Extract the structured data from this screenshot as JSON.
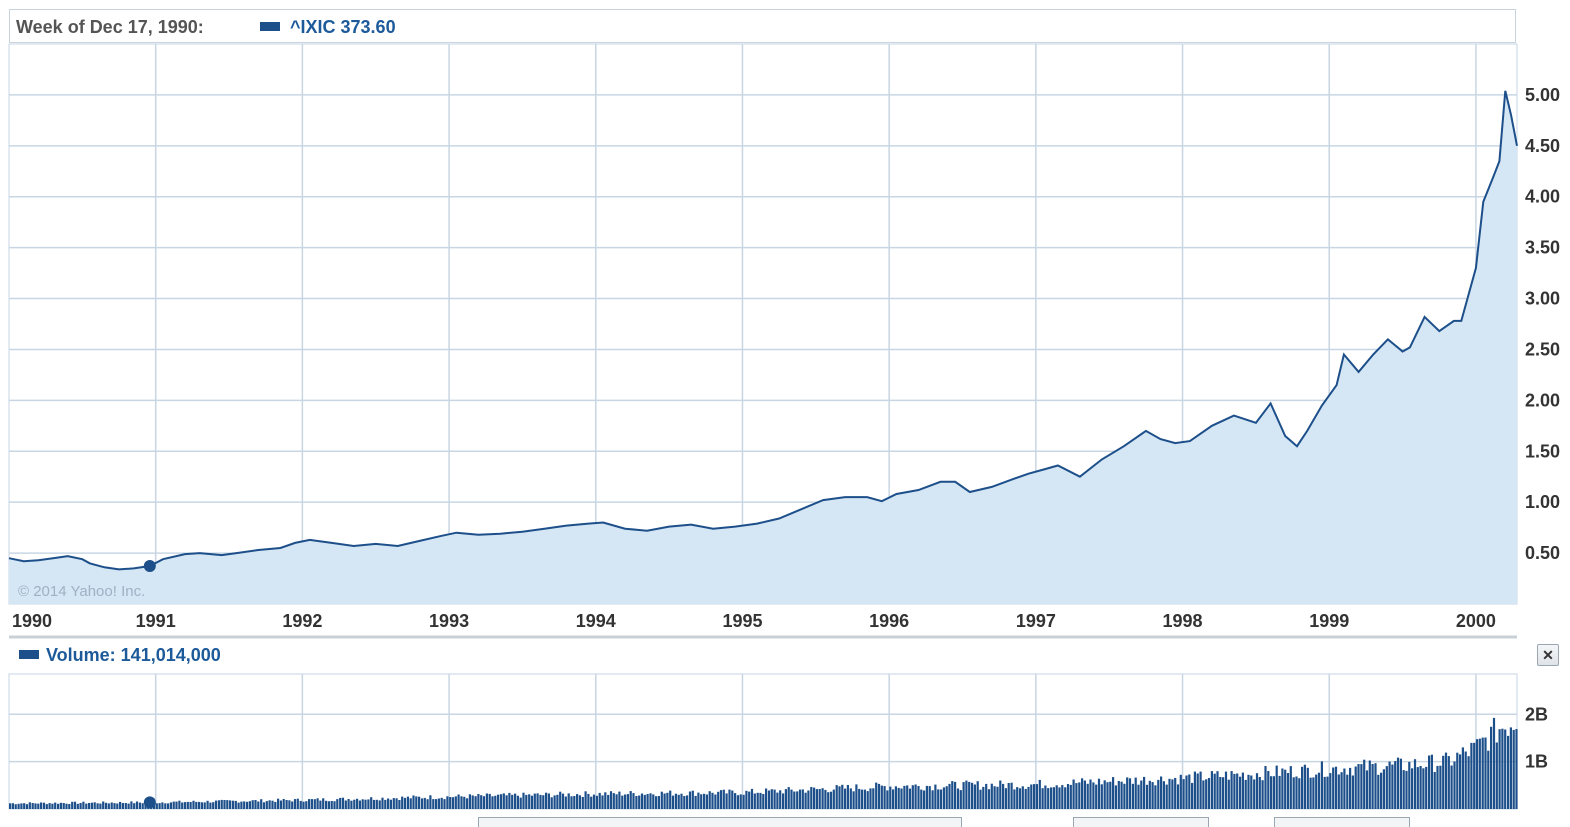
{
  "header": {
    "week_label": "Week of Dec 17, 1990:",
    "symbol_label": "^IXIC 373.60",
    "copyright": "© 2014 Yahoo! Inc."
  },
  "volume": {
    "label": "Volume: 141,014,000"
  },
  "colors": {
    "line": "#1d4f8a",
    "fill": "#d5e6f4",
    "grid": "#c8d6e3",
    "text": "#333333",
    "accent": "#1d5a9a"
  },
  "icons": {
    "close": "close-icon"
  },
  "chart_data": [
    {
      "type": "area",
      "title": "",
      "x_tick_labels": [
        "1990",
        "1991",
        "1992",
        "1993",
        "1994",
        "1995",
        "1996",
        "1997",
        "1998",
        "1999",
        "2000"
      ],
      "y_tick_labels": [
        "0.50",
        "1.00",
        "1.50",
        "2.00",
        "2.50",
        "3.00",
        "3.50",
        "4.00",
        "4.50",
        "5.00"
      ],
      "xlim": [
        1990.0,
        2000.28
      ],
      "ylim": [
        0,
        5.5
      ],
      "y_unit_note": "values in thousands as printed on axis",
      "grid": true,
      "highlight": {
        "x": 1990.96,
        "y": 0.3736
      },
      "series": [
        {
          "x": [
            1990.0,
            1990.1,
            1990.2,
            1990.3,
            1990.4,
            1990.5,
            1990.55,
            1990.65,
            1990.75,
            1990.85,
            1990.96,
            1991.05,
            1991.2,
            1991.3,
            1991.45,
            1991.55,
            1991.7,
            1991.85,
            1991.95,
            1992.05,
            1992.2,
            1992.35,
            1992.5,
            1992.65,
            1992.8,
            1992.95,
            1993.05,
            1993.2,
            1993.35,
            1993.5,
            1993.65,
            1993.8,
            1993.95,
            1994.05,
            1994.2,
            1994.35,
            1994.5,
            1994.65,
            1994.8,
            1994.95,
            1995.1,
            1995.25,
            1995.4,
            1995.55,
            1995.7,
            1995.85,
            1995.95,
            1996.05,
            1996.2,
            1996.35,
            1996.45,
            1996.55,
            1996.7,
            1996.85,
            1996.95,
            1997.05,
            1997.15,
            1997.3,
            1997.45,
            1997.6,
            1997.75,
            1997.85,
            1997.95,
            1998.05,
            1998.2,
            1998.35,
            1998.5,
            1998.6,
            1998.7,
            1998.78,
            1998.85,
            1998.95,
            1999.05,
            1999.1,
            1999.2,
            1999.3,
            1999.4,
            1999.5,
            1999.55,
            1999.65,
            1999.75,
            1999.85,
            1999.9,
            2000.0,
            2000.05,
            2000.12,
            2000.16,
            2000.2,
            2000.24,
            2000.28
          ],
          "values": [
            0.45,
            0.42,
            0.43,
            0.45,
            0.47,
            0.44,
            0.4,
            0.36,
            0.34,
            0.35,
            0.3736,
            0.44,
            0.49,
            0.5,
            0.48,
            0.5,
            0.53,
            0.55,
            0.6,
            0.63,
            0.6,
            0.57,
            0.59,
            0.57,
            0.62,
            0.67,
            0.7,
            0.68,
            0.69,
            0.71,
            0.74,
            0.77,
            0.79,
            0.8,
            0.74,
            0.72,
            0.76,
            0.78,
            0.74,
            0.76,
            0.79,
            0.84,
            0.93,
            1.02,
            1.05,
            1.05,
            1.01,
            1.08,
            1.12,
            1.2,
            1.2,
            1.1,
            1.15,
            1.23,
            1.28,
            1.32,
            1.36,
            1.25,
            1.42,
            1.55,
            1.7,
            1.62,
            1.58,
            1.6,
            1.75,
            1.85,
            1.78,
            1.97,
            1.65,
            1.55,
            1.7,
            1.95,
            2.15,
            2.45,
            2.28,
            2.45,
            2.6,
            2.48,
            2.52,
            2.82,
            2.68,
            2.78,
            2.78,
            3.3,
            3.95,
            4.2,
            4.35,
            5.04,
            4.8,
            4.5
          ]
        }
      ]
    },
    {
      "type": "bar",
      "title": "",
      "label": "Volume",
      "y_tick_labels": [
        "1B",
        "2B"
      ],
      "ylim": [
        0,
        2.85
      ],
      "unit": "billion shares",
      "highlight": {
        "x": 1990.96,
        "value": 0.141
      },
      "volume_profile": {
        "x": [
          1990.0,
          1991.0,
          1992.0,
          1993.0,
          1994.0,
          1995.0,
          1996.0,
          1997.0,
          1998.0,
          1998.5,
          1999.0,
          1999.5,
          1999.8,
          2000.0,
          2000.15,
          2000.28
        ],
        "values": [
          0.12,
          0.14,
          0.19,
          0.26,
          0.32,
          0.35,
          0.48,
          0.52,
          0.65,
          0.75,
          0.85,
          0.92,
          1.0,
          1.3,
          1.7,
          1.9
        ]
      }
    }
  ]
}
